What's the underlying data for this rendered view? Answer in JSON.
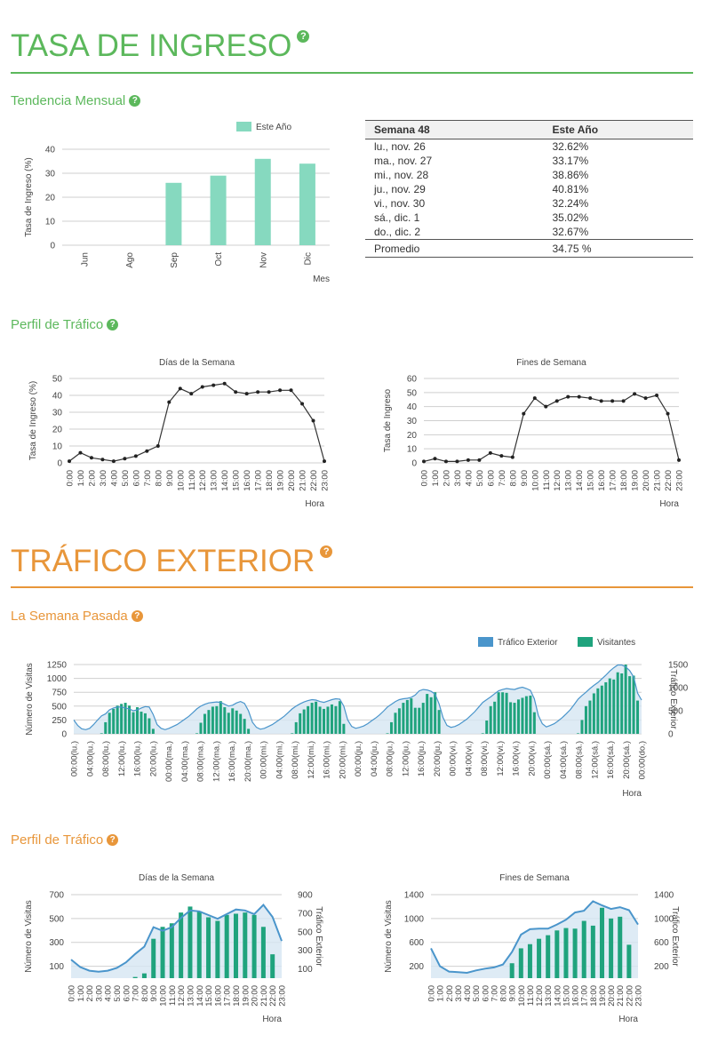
{
  "colors": {
    "green": "#5cb85c",
    "orange": "#e8963a",
    "bar_teal": "#86d9bf",
    "bar_green": "#1fa37d",
    "line_blue": "#4a95cb",
    "area_blue": "#d6e6f3"
  },
  "section1": {
    "title": "TASA DE INGRESO",
    "help_icon": "question-circle-icon"
  },
  "section2": {
    "title": "TRÁFICO EXTERIOR",
    "help_icon": "question-circle-icon"
  },
  "monthly": {
    "subtitle": "Tendencia Mensual",
    "table": {
      "headers": [
        "Semana 48",
        "Este Año"
      ],
      "rows": [
        [
          "lu., nov. 26",
          "32.62%"
        ],
        [
          "ma., nov. 27",
          "33.17%"
        ],
        [
          "mi., nov. 28",
          "38.86%"
        ],
        [
          "ju., nov. 29",
          "40.81%"
        ],
        [
          "vi., nov. 30",
          "32.24%"
        ],
        [
          "sá., dic. 1",
          "35.02%"
        ],
        [
          "do., dic. 2",
          "32.67%"
        ]
      ],
      "avg_label": "Promedio",
      "avg_value": "34.75 %"
    }
  },
  "profile1": {
    "subtitle": "Perfil de Tráfico"
  },
  "lastweek": {
    "subtitle": "La Semana Pasada"
  },
  "profile2": {
    "subtitle": "Perfil de Tráfico"
  },
  "chart_data": [
    {
      "id": "monthly",
      "type": "bar",
      "categories": [
        "Jun",
        "Ago",
        "Sep",
        "Oct",
        "Nov",
        "Dic"
      ],
      "series": [
        {
          "name": "Este Año",
          "values": [
            0,
            0,
            26,
            29,
            36,
            34
          ]
        }
      ],
      "xlabel": "Mes",
      "ylabel": "Tasa de Ingreso (%)",
      "ylim": [
        0,
        40
      ],
      "yticks": [
        0,
        10,
        20,
        30,
        40
      ],
      "legend": "top-center",
      "grid": true
    },
    {
      "id": "weekday_rate",
      "type": "line",
      "title": "Días de la Semana",
      "categories": [
        "0:00",
        "1:00",
        "2:00",
        "3:00",
        "4:00",
        "5:00",
        "6:00",
        "7:00",
        "8:00",
        "9:00",
        "10:00",
        "11:00",
        "12:00",
        "13:00",
        "14:00",
        "15:00",
        "16:00",
        "17:00",
        "18:00",
        "19:00",
        "20:00",
        "21:00",
        "22:00",
        "23:00"
      ],
      "values": [
        1,
        6,
        3,
        2,
        1,
        2.5,
        4,
        7,
        10,
        36,
        44,
        41,
        45,
        46,
        47,
        42,
        41,
        42,
        42,
        43,
        43,
        35,
        25,
        1
      ],
      "xlabel": "Hora",
      "ylabel": "Tasa de Ingreso (%)",
      "ylim": [
        0,
        50
      ],
      "yticks": [
        0,
        10,
        20,
        30,
        40,
        50
      ],
      "grid": true
    },
    {
      "id": "weekend_rate",
      "type": "line",
      "title": "Fines de Semana",
      "categories": [
        "0:00",
        "1:00",
        "2:00",
        "3:00",
        "4:00",
        "5:00",
        "6:00",
        "7:00",
        "8:00",
        "9:00",
        "10:00",
        "11:00",
        "12:00",
        "13:00",
        "14:00",
        "15:00",
        "16:00",
        "17:00",
        "18:00",
        "19:00",
        "20:00",
        "21:00",
        "22:00",
        "23:00"
      ],
      "values": [
        1,
        3,
        1,
        1,
        2,
        2,
        7,
        5,
        4,
        35,
        46,
        40,
        44,
        47,
        47,
        46,
        44,
        44,
        44,
        49,
        46,
        48,
        35,
        2
      ],
      "xlabel": "Hora",
      "ylabel": "Tasa de Ingreso",
      "ylim": [
        0,
        60
      ],
      "yticks": [
        0,
        10,
        20,
        30,
        40,
        50,
        60
      ],
      "grid": true
    },
    {
      "id": "lastweek",
      "type": "bar",
      "combo_line": true,
      "tick_labels": [
        "00:00(lu.)",
        "04:00(lu.)",
        "08:00(lu.)",
        "12:00(lu.)",
        "16:00(lu.)",
        "20:00(lu.)",
        "00:00(ma.)",
        "04:00(ma.)",
        "08:00(ma.)",
        "12:00(ma.)",
        "16:00(ma.)",
        "20:00(ma.)",
        "00:00(mi.)",
        "04:00(mi.)",
        "08:00(mi.)",
        "12:00(mi.)",
        "16:00(mi.)",
        "20:00(mi.)",
        "00:00(ju.)",
        "04:00(ju.)",
        "08:00(ju.)",
        "12:00(ju.)",
        "16:00(ju.)",
        "20:00(ju.)",
        "00:00(vi.)",
        "04:00(vi.)",
        "08:00(vi.)",
        "12:00(vi.)",
        "16:00(vi.)",
        "20:00(vi.)",
        "00:00(sá.)",
        "04:00(sá.)",
        "08:00(sá.)",
        "12:00(sá.)",
        "16:00(sá.)",
        "20:00(sá.)",
        "00:00(do.)"
      ],
      "series": [
        {
          "name": "Visitantes",
          "axis": "left",
          "values": [
            0,
            0,
            0,
            0,
            0,
            0,
            0,
            10,
            210,
            380,
            450,
            510,
            540,
            560,
            510,
            390,
            480,
            400,
            370,
            280,
            90,
            0,
            0,
            0,
            0,
            0,
            0,
            0,
            0,
            0,
            0,
            10,
            200,
            360,
            430,
            490,
            500,
            590,
            480,
            380,
            460,
            420,
            360,
            270,
            90,
            0,
            0,
            0,
            0,
            0,
            0,
            0,
            0,
            0,
            0,
            10,
            210,
            370,
            440,
            500,
            560,
            580,
            490,
            450,
            490,
            530,
            500,
            590,
            180,
            0,
            0,
            0,
            0,
            0,
            0,
            0,
            0,
            0,
            0,
            10,
            210,
            380,
            460,
            560,
            610,
            640,
            470,
            470,
            560,
            720,
            660,
            750,
            430,
            0,
            0,
            0,
            0,
            0,
            0,
            0,
            0,
            0,
            0,
            10,
            240,
            500,
            580,
            750,
            750,
            740,
            570,
            560,
            620,
            650,
            680,
            690,
            390,
            0,
            0,
            0,
            0,
            0,
            0,
            0,
            0,
            0,
            0,
            10,
            250,
            500,
            600,
            730,
            820,
            870,
            930,
            1000,
            980,
            1110,
            1090,
            1250,
            1040,
            1050,
            600,
            0
          ]
        },
        {
          "name": "Tráfico Exterior",
          "axis": "right",
          "values": [
            300,
            180,
            110,
            90,
            120,
            200,
            300,
            390,
            430,
            520,
            560,
            580,
            580,
            560,
            540,
            500,
            520,
            560,
            590,
            580,
            420,
            200,
            120,
            90,
            120,
            160,
            200,
            260,
            320,
            380,
            460,
            540,
            600,
            640,
            670,
            680,
            690,
            680,
            640,
            600,
            620,
            670,
            700,
            660,
            500,
            250,
            140,
            100,
            120,
            160,
            200,
            260,
            320,
            380,
            460,
            540,
            600,
            650,
            690,
            720,
            740,
            730,
            700,
            680,
            710,
            740,
            760,
            750,
            600,
            300,
            160,
            120,
            140,
            170,
            220,
            280,
            340,
            410,
            490,
            580,
            640,
            700,
            740,
            760,
            770,
            790,
            840,
            930,
            960,
            950,
            920,
            860,
            650,
            350,
            180,
            140,
            160,
            200,
            260,
            320,
            400,
            480,
            580,
            680,
            740,
            800,
            870,
            930,
            960,
            980,
            970,
            960,
            990,
            1010,
            980,
            940,
            760,
            400,
            220,
            150,
            180,
            220,
            280,
            350,
            430,
            520,
            630,
            750,
            830,
            900,
            980,
            1050,
            1110,
            1190,
            1270,
            1360,
            1430,
            1490,
            1490,
            1450,
            1370,
            1230,
            880,
            730
          ]
        }
      ],
      "xlabel": "Hora",
      "ylabel": "Número de Visitas",
      "y2label": "Tráfico Exterior",
      "ylim": [
        0,
        1250
      ],
      "yticks": [
        0,
        250,
        500,
        750,
        1000,
        1250
      ],
      "y2lim": [
        0,
        1500
      ],
      "y2ticks": [
        0,
        500,
        1000,
        1500
      ],
      "legend": "top-right",
      "grid": true
    },
    {
      "id": "weekday_traffic",
      "type": "bar",
      "combo_line": true,
      "title": "Días de la Semana",
      "categories": [
        "0:00",
        "1:00",
        "2:00",
        "3:00",
        "4:00",
        "5:00",
        "6:00",
        "7:00",
        "8:00",
        "9:00",
        "10:00",
        "11:00",
        "12:00",
        "13:00",
        "14:00",
        "15:00",
        "16:00",
        "17:00",
        "18:00",
        "19:00",
        "20:00",
        "21:00",
        "22:00",
        "23:00"
      ],
      "series": [
        {
          "name": "Visitantes",
          "axis": "left",
          "values": [
            0,
            0,
            0,
            0,
            0,
            0,
            0,
            10,
            40,
            330,
            430,
            460,
            550,
            600,
            560,
            510,
            480,
            530,
            540,
            550,
            530,
            430,
            200,
            0
          ]
        },
        {
          "name": "Tráfico Exterior",
          "axis": "right",
          "values": [
            200,
            120,
            80,
            70,
            80,
            110,
            170,
            260,
            340,
            550,
            510,
            550,
            650,
            730,
            720,
            680,
            640,
            690,
            740,
            730,
            690,
            790,
            660,
            400
          ]
        }
      ],
      "xlabel": "Hora",
      "ylabel": "Número de Visitas",
      "y2label": "Tráfico Exterior",
      "ylim": [
        0,
        700
      ],
      "yticks": [
        100,
        300,
        500,
        700
      ],
      "y2lim": [
        0,
        900
      ],
      "y2ticks": [
        100,
        300,
        500,
        700,
        900
      ],
      "grid": true
    },
    {
      "id": "weekend_traffic",
      "type": "bar",
      "combo_line": true,
      "title": "Fines de Semana",
      "categories": [
        "0:00",
        "1:00",
        "2:00",
        "3:00",
        "4:00",
        "5:00",
        "6:00",
        "7:00",
        "8:00",
        "9:00",
        "10:00",
        "11:00",
        "12:00",
        "13:00",
        "14:00",
        "15:00",
        "16:00",
        "17:00",
        "18:00",
        "19:00",
        "20:00",
        "21:00",
        "22:00",
        "23:00"
      ],
      "series": [
        {
          "name": "Visitantes",
          "axis": "left",
          "values": [
            0,
            0,
            0,
            0,
            0,
            0,
            0,
            0,
            0,
            250,
            500,
            570,
            660,
            720,
            800,
            840,
            830,
            960,
            880,
            1180,
            1000,
            1030,
            560,
            0
          ]
        },
        {
          "name": "Tráfico Exterior",
          "axis": "right",
          "values": [
            500,
            200,
            110,
            100,
            90,
            130,
            160,
            180,
            230,
            440,
            730,
            820,
            830,
            830,
            900,
            980,
            1100,
            1130,
            1290,
            1220,
            1160,
            1190,
            1140,
            900
          ]
        }
      ],
      "xlabel": "Hora",
      "ylabel": "Número de Visitas",
      "y2label": "Tráfico Exterior",
      "ylim": [
        0,
        1400
      ],
      "yticks": [
        200,
        600,
        1000,
        1400
      ],
      "y2lim": [
        0,
        1400
      ],
      "y2ticks": [
        200,
        600,
        1000,
        1400
      ],
      "grid": true
    }
  ]
}
